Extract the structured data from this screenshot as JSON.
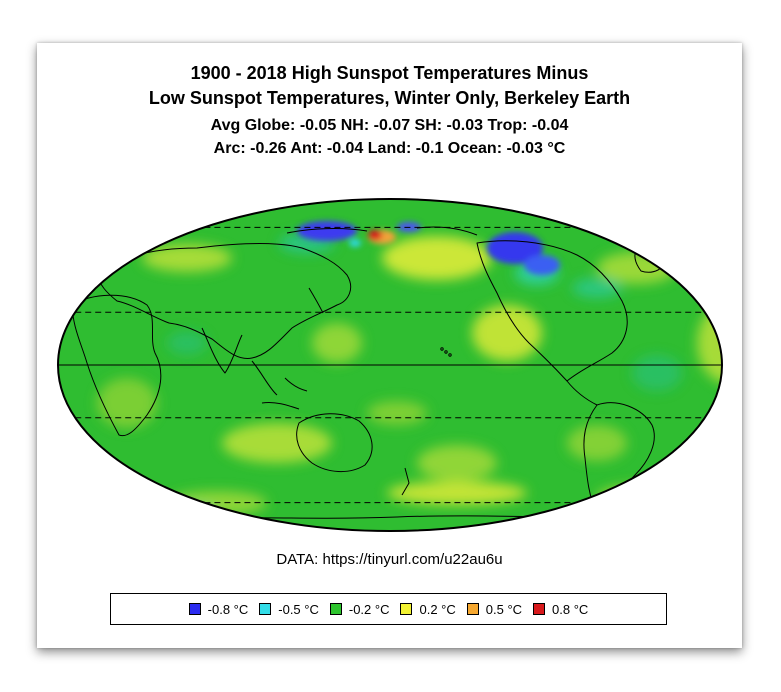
{
  "title_lines": [
    "1900 - 2018 High Sunspot Temperatures Minus",
    "Low Sunspot Temperatures, Winter Only, Berkeley Earth",
    "Avg Globe: -0.05  NH: -0.07  SH: -0.03  Trop: -0.04",
    "Arc: -0.26  Ant: -0.04  Land: -0.1 Ocean: -0.03 °C"
  ],
  "source_text": "DATA: https://tinyurl.com/u22au6u",
  "map": {
    "projection": "Mollweide",
    "center_longitude": 180,
    "reference_lines": [
      {
        "latitude": 0,
        "style": "solid"
      },
      {
        "latitude": 23.44,
        "style": "dashed"
      },
      {
        "latitude": -23.44,
        "style": "dashed"
      },
      {
        "latitude": 66.56,
        "style": "dashed"
      },
      {
        "latitude": -66.56,
        "style": "dashed"
      }
    ],
    "background_color": "#2fbd31"
  },
  "legend": [
    {
      "label": "-0.8 °C",
      "color": "#2b2bf0"
    },
    {
      "label": "-0.5 °C",
      "color": "#33dde8"
    },
    {
      "label": "-0.2 °C",
      "color": "#2ec52e"
    },
    {
      "label": "0.2 °C",
      "color": "#f2f233"
    },
    {
      "label": "0.5 °C",
      "color": "#f6a830"
    },
    {
      "label": "0.8 °C",
      "color": "#d8191c"
    }
  ]
}
